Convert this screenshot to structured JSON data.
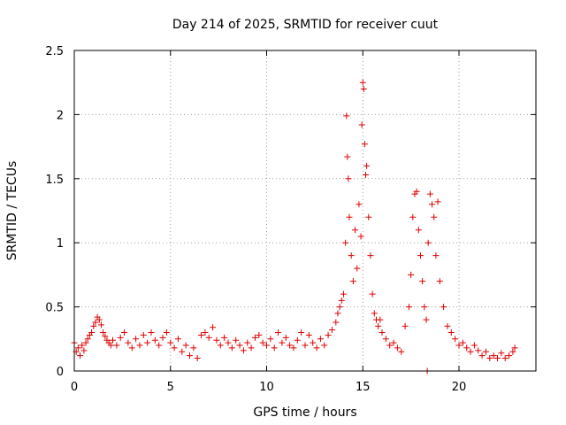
{
  "chart_data": {
    "type": "scatter",
    "title": "Day 214 of 2025, SRMTID for receiver cuut",
    "xlabel": "GPS time / hours",
    "ylabel": "SRMTID / TECUs",
    "xlim": [
      0,
      24
    ],
    "ylim": [
      0,
      2.5
    ],
    "xticks": [
      0,
      5,
      10,
      15,
      20
    ],
    "yticks": [
      0,
      0.5,
      1,
      1.5,
      2,
      2.5
    ],
    "xtick_labels": [
      "0",
      "5",
      "10",
      "15",
      "20"
    ],
    "ytick_labels": [
      "0",
      "0.5",
      "1",
      "1.5",
      "2",
      "2.5"
    ],
    "grid": true,
    "marker": "+",
    "color": "#e00000",
    "series": [
      {
        "name": "SRMTID",
        "points": [
          [
            0.0,
            0.22
          ],
          [
            0.1,
            0.15
          ],
          [
            0.2,
            0.18
          ],
          [
            0.3,
            0.12
          ],
          [
            0.4,
            0.2
          ],
          [
            0.5,
            0.16
          ],
          [
            0.6,
            0.22
          ],
          [
            0.7,
            0.25
          ],
          [
            0.8,
            0.28
          ],
          [
            0.9,
            0.3
          ],
          [
            1.0,
            0.35
          ],
          [
            1.1,
            0.38
          ],
          [
            1.2,
            0.42
          ],
          [
            1.3,
            0.4
          ],
          [
            1.4,
            0.36
          ],
          [
            1.5,
            0.3
          ],
          [
            1.6,
            0.27
          ],
          [
            1.7,
            0.24
          ],
          [
            1.8,
            0.22
          ],
          [
            1.9,
            0.2
          ],
          [
            2.0,
            0.24
          ],
          [
            2.2,
            0.2
          ],
          [
            2.4,
            0.26
          ],
          [
            2.6,
            0.3
          ],
          [
            2.8,
            0.22
          ],
          [
            3.0,
            0.18
          ],
          [
            3.2,
            0.25
          ],
          [
            3.4,
            0.2
          ],
          [
            3.6,
            0.28
          ],
          [
            3.8,
            0.22
          ],
          [
            4.0,
            0.3
          ],
          [
            4.2,
            0.24
          ],
          [
            4.4,
            0.2
          ],
          [
            4.6,
            0.26
          ],
          [
            4.8,
            0.3
          ],
          [
            5.0,
            0.22
          ],
          [
            5.2,
            0.18
          ],
          [
            5.4,
            0.25
          ],
          [
            5.6,
            0.15
          ],
          [
            5.8,
            0.2
          ],
          [
            6.0,
            0.12
          ],
          [
            6.2,
            0.18
          ],
          [
            6.4,
            0.1
          ],
          [
            6.6,
            0.28
          ],
          [
            6.8,
            0.3
          ],
          [
            7.0,
            0.26
          ],
          [
            7.2,
            0.34
          ],
          [
            7.4,
            0.24
          ],
          [
            7.6,
            0.2
          ],
          [
            7.8,
            0.26
          ],
          [
            8.0,
            0.22
          ],
          [
            8.2,
            0.18
          ],
          [
            8.4,
            0.24
          ],
          [
            8.6,
            0.2
          ],
          [
            8.8,
            0.16
          ],
          [
            9.0,
            0.22
          ],
          [
            9.2,
            0.18
          ],
          [
            9.4,
            0.26
          ],
          [
            9.6,
            0.28
          ],
          [
            9.8,
            0.22
          ],
          [
            10.0,
            0.2
          ],
          [
            10.2,
            0.25
          ],
          [
            10.4,
            0.18
          ],
          [
            10.6,
            0.3
          ],
          [
            10.8,
            0.22
          ],
          [
            11.0,
            0.26
          ],
          [
            11.2,
            0.2
          ],
          [
            11.4,
            0.18
          ],
          [
            11.6,
            0.24
          ],
          [
            11.8,
            0.3
          ],
          [
            12.0,
            0.2
          ],
          [
            12.2,
            0.28
          ],
          [
            12.4,
            0.22
          ],
          [
            12.6,
            0.18
          ],
          [
            12.8,
            0.25
          ],
          [
            13.0,
            0.2
          ],
          [
            13.2,
            0.28
          ],
          [
            13.4,
            0.32
          ],
          [
            13.6,
            0.38
          ],
          [
            13.7,
            0.45
          ],
          [
            13.8,
            0.5
          ],
          [
            13.9,
            0.55
          ],
          [
            14.0,
            0.6
          ],
          [
            14.1,
            1.0
          ],
          [
            14.15,
            1.99
          ],
          [
            14.2,
            1.67
          ],
          [
            14.25,
            1.5
          ],
          [
            14.3,
            1.2
          ],
          [
            14.4,
            0.9
          ],
          [
            14.5,
            0.7
          ],
          [
            14.6,
            1.1
          ],
          [
            14.7,
            0.8
          ],
          [
            14.8,
            1.3
          ],
          [
            14.9,
            1.05
          ],
          [
            14.95,
            1.92
          ],
          [
            15.0,
            2.25
          ],
          [
            15.05,
            2.2
          ],
          [
            15.1,
            1.77
          ],
          [
            15.15,
            1.53
          ],
          [
            15.2,
            1.6
          ],
          [
            15.3,
            1.2
          ],
          [
            15.4,
            0.9
          ],
          [
            15.5,
            0.6
          ],
          [
            15.6,
            0.45
          ],
          [
            15.7,
            0.4
          ],
          [
            15.8,
            0.35
          ],
          [
            15.9,
            0.4
          ],
          [
            16.0,
            0.3
          ],
          [
            16.2,
            0.25
          ],
          [
            16.4,
            0.2
          ],
          [
            16.6,
            0.22
          ],
          [
            16.8,
            0.18
          ],
          [
            17.0,
            0.15
          ],
          [
            17.2,
            0.35
          ],
          [
            17.4,
            0.5
          ],
          [
            17.5,
            0.75
          ],
          [
            17.6,
            1.2
          ],
          [
            17.7,
            1.38
          ],
          [
            17.8,
            1.4
          ],
          [
            17.9,
            1.1
          ],
          [
            18.0,
            0.9
          ],
          [
            18.1,
            0.7
          ],
          [
            18.2,
            0.5
          ],
          [
            18.3,
            0.4
          ],
          [
            18.35,
            0.0
          ],
          [
            18.4,
            1.0
          ],
          [
            18.5,
            1.38
          ],
          [
            18.6,
            1.3
          ],
          [
            18.7,
            1.2
          ],
          [
            18.8,
            0.9
          ],
          [
            18.9,
            1.32
          ],
          [
            19.0,
            0.7
          ],
          [
            19.2,
            0.5
          ],
          [
            19.4,
            0.35
          ],
          [
            19.6,
            0.3
          ],
          [
            19.8,
            0.25
          ],
          [
            20.0,
            0.2
          ],
          [
            20.2,
            0.22
          ],
          [
            20.4,
            0.18
          ],
          [
            20.6,
            0.15
          ],
          [
            20.8,
            0.2
          ],
          [
            21.0,
            0.16
          ],
          [
            21.2,
            0.12
          ],
          [
            21.4,
            0.15
          ],
          [
            21.6,
            0.1
          ],
          [
            21.8,
            0.12
          ],
          [
            22.0,
            0.1
          ],
          [
            22.2,
            0.14
          ],
          [
            22.4,
            0.1
          ],
          [
            22.6,
            0.12
          ],
          [
            22.8,
            0.15
          ],
          [
            22.9,
            0.18
          ]
        ]
      }
    ]
  }
}
